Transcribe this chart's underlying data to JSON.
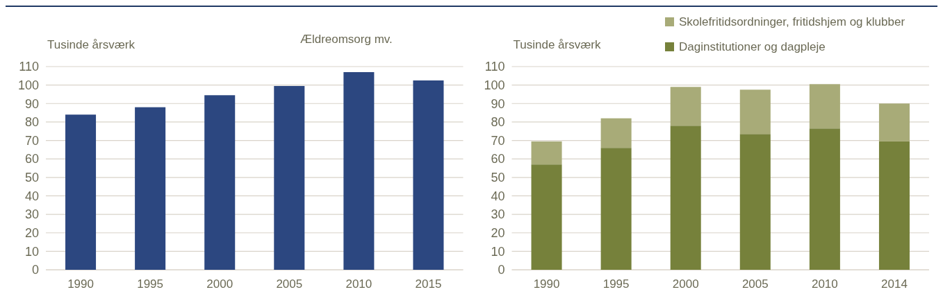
{
  "chart_data": [
    {
      "type": "bar",
      "title": "Ældreomsorg mv.",
      "ylabel": "Tusinde årsværk",
      "categories": [
        "1990",
        "1995",
        "2000",
        "2005",
        "2010",
        "2015"
      ],
      "series": [
        {
          "color": "#2c4780",
          "values": [
            84,
            88,
            94.5,
            99.5,
            107,
            102.5
          ]
        }
      ],
      "ylim": [
        0,
        110
      ],
      "yticks": [
        0,
        10,
        20,
        30,
        40,
        50,
        60,
        70,
        80,
        90,
        100,
        110
      ],
      "grid": "y",
      "legend": false
    },
    {
      "type": "bar",
      "ylabel": "Tusinde årsværk",
      "categories": [
        "1990",
        "1995",
        "2000",
        "2005",
        "2010",
        "2014"
      ],
      "stacked": true,
      "series": [
        {
          "name": "Daginstitutioner og dagpleje",
          "color": "#76813b",
          "values": [
            57,
            66,
            78,
            73.5,
            76.5,
            69.5
          ]
        },
        {
          "name": "Skolefritidsordninger, fritidshjem og klubber",
          "color": "#a8ab78",
          "values": [
            12.5,
            16,
            21,
            24,
            24,
            20.5
          ]
        }
      ],
      "ylim": [
        0,
        110
      ],
      "yticks": [
        0,
        10,
        20,
        30,
        40,
        50,
        60,
        70,
        80,
        90,
        100,
        110
      ],
      "grid": "y",
      "legend": "top right"
    }
  ]
}
